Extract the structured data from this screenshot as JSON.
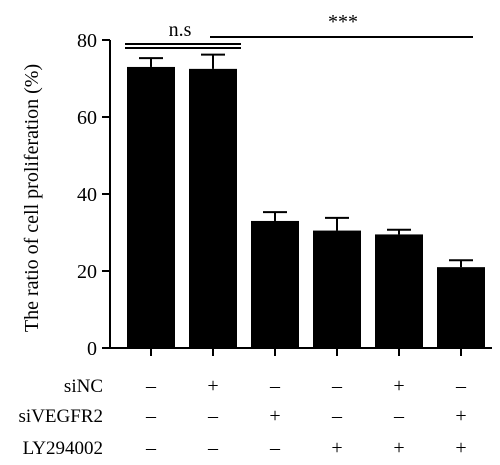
{
  "chart_data": {
    "type": "bar",
    "title": "",
    "xlabel": "",
    "ylabel": "The ratio of cell proliferation (%)",
    "ylim": [
      0,
      80
    ],
    "yticks": [
      0,
      20,
      40,
      60,
      80
    ],
    "ytick_labels": [
      "0",
      "20",
      "40",
      "60",
      "80"
    ],
    "grid": false,
    "bar_color": "#000000",
    "values": [
      73,
      72.5,
      33,
      30.5,
      29.5,
      21
    ],
    "errors": [
      2.3,
      3.7,
      2.3,
      3.3,
      1.2,
      1.8
    ],
    "conditions": [
      {
        "label": "siNC",
        "marks": [
          "–",
          "+",
          "–",
          "–",
          "+",
          "–"
        ]
      },
      {
        "label": "siVEGFR2",
        "marks": [
          "–",
          "–",
          "+",
          "–",
          "–",
          "+"
        ]
      },
      {
        "label": "LY294002",
        "marks": [
          "–",
          "–",
          "–",
          "+",
          "+",
          "+"
        ]
      }
    ],
    "annotations": [
      {
        "text": "n.s",
        "from_bar": 0,
        "to_bar": 1
      },
      {
        "text": "***",
        "from_bar": 1,
        "to_bar": 5
      }
    ]
  }
}
